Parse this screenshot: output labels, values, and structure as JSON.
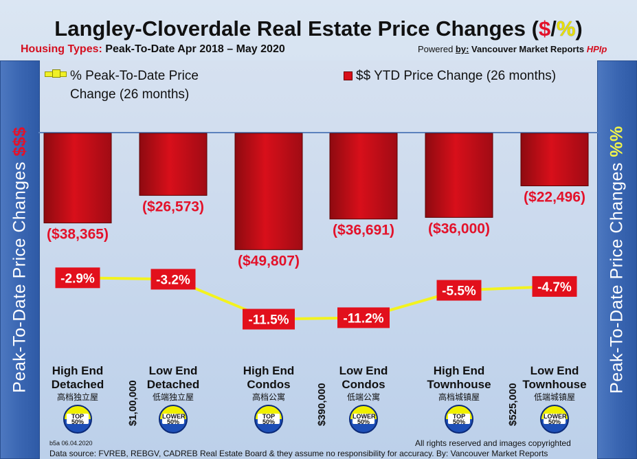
{
  "header": {
    "title_main": "Langley-Cloverdale Real Estate Price Changes (",
    "title_dollar": "$",
    "title_slash": "/",
    "title_pct": "%",
    "title_close": ")",
    "housing_label": "Housing Types:",
    "period": "Peak-To-Date Apr 2018 – May 2020",
    "powered_prefix": "Powered ",
    "powered_by": "by:",
    "powered_name": "Vancouver Market Reports",
    "powered_hpi": "HPIp"
  },
  "side": {
    "left_text": "Peak-To-Date Price Changes ",
    "left_symbol": "$$$",
    "right_text": "Peak-To-Date  Price  Changes ",
    "right_symbol": "%%"
  },
  "legend": {
    "line_line1": "% Peak-To-Date Price",
    "line_line2": "Change (26 months)",
    "bar_label": "$$ YTD Price Change (26 months)"
  },
  "chart_data": {
    "type": "bar",
    "categories": [
      {
        "line1": "High End",
        "line2": "Detached",
        "cn": "高档独立屋",
        "tier": "TOP 50%"
      },
      {
        "line1": "Low End",
        "line2": "Detached",
        "cn": "低端独立屋",
        "tier": "LOWER 50%"
      },
      {
        "line1": "High End",
        "line2": "Condos",
        "cn": "高档公寓",
        "tier": "TOP 50%"
      },
      {
        "line1": "Low End",
        "line2": "Condos",
        "cn": "低端公寓",
        "tier": "LOWER 50%"
      },
      {
        "line1": "High End",
        "line2": "Townhouse",
        "cn": "高档城镇屋",
        "tier": "TOP 50%"
      },
      {
        "line1": "Low End",
        "line2": "Townhouse",
        "cn": "低端城镇屋",
        "tier": "LOWER 50%"
      }
    ],
    "series": [
      {
        "name": "$$ YTD Price Change (26 months)",
        "type": "bar",
        "values": [
          -38365,
          -26573,
          -49807,
          -36691,
          -36000,
          -22496
        ],
        "labels": [
          "($38,365)",
          "($26,573)",
          "($49,807)",
          "($36,691)",
          "($36,000)",
          "($22,496)"
        ],
        "color": "#d80f1a"
      },
      {
        "name": "% Peak-To-Date Price Change (26 months)",
        "type": "line",
        "values": [
          -2.9,
          -3.2,
          -11.5,
          -11.2,
          -5.5,
          -4.7
        ],
        "labels": [
          "-2.9%",
          "-3.2%",
          "-11.5%",
          "-11.2%",
          "-5.5%",
          "-4.7%"
        ],
        "color": "#f0f028"
      }
    ],
    "dividers": [
      "$1,00,000",
      "$390,000",
      "$525,000"
    ],
    "ylim_dollars": [
      -50000,
      0
    ],
    "ylim_percent": [
      -12,
      0
    ],
    "grid": false,
    "legend_position": "top"
  },
  "footer": {
    "stamp": "b5a 06.04.2020",
    "rights": "All rights reserved and  images copyrighted",
    "source": "Data source: FVREB, REBGV, CADREB Real Estate Board & they assume no responsibility for accuracy. By: Vancouver Market Reports"
  },
  "colors": {
    "bar": "#d80f1a",
    "line": "#f0f028",
    "label_red": "#e3122a",
    "side_panel": "#3a66b2"
  }
}
